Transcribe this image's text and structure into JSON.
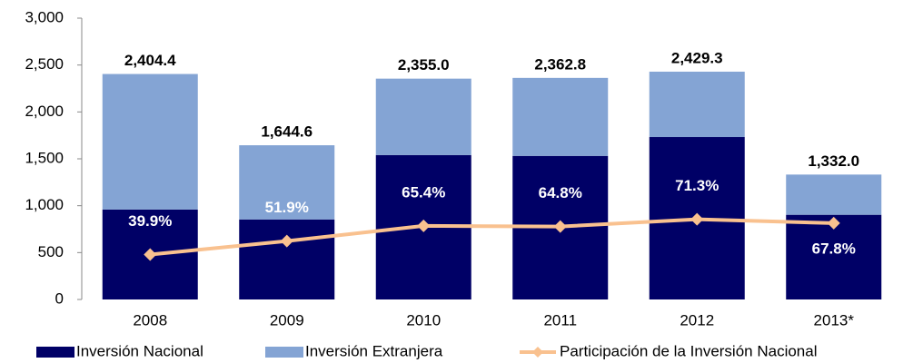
{
  "chart_data": {
    "type": "bar",
    "categories": [
      "2008",
      "2009",
      "2010",
      "2011",
      "2012",
      "2013*"
    ],
    "series": [
      {
        "name": "Inversión Nacional",
        "color": "#000066",
        "values": [
          959.4,
          853.5,
          1540.2,
          1531.1,
          1732.1,
          903.1
        ]
      },
      {
        "name": "Inversión Extranjera",
        "color": "#84a4d4",
        "values": [
          1445.0,
          791.1,
          814.8,
          831.7,
          697.2,
          428.9
        ]
      },
      {
        "name": "Participación de la Inversión Nacional",
        "type": "line",
        "axis": "y2",
        "color": "#f9c18f",
        "values": [
          39.9,
          51.9,
          65.4,
          64.8,
          71.3,
          67.8
        ],
        "value_labels": [
          "39.9%",
          "51.9%",
          "65.4%",
          "64.8%",
          "71.3%",
          "67.8%"
        ]
      }
    ],
    "totals": [
      2404.4,
      1644.6,
      2355.0,
      2362.8,
      2429.3,
      1332.0
    ],
    "total_labels": [
      "2,404.4",
      "1,644.6",
      "2,355.0",
      "2,362.8",
      "2,429.3",
      "1,332.0"
    ],
    "ylim": [
      0,
      3000
    ],
    "yticks": [
      0,
      500,
      {
        "value": 1000,
        "label": "1,000"
      },
      {
        "value": 1500,
        "label": "1,500"
      },
      {
        "value": 2000,
        "label": "2,000"
      },
      {
        "value": 2500,
        "label": "2,500"
      },
      {
        "value": 3000,
        "label": "3,000"
      }
    ],
    "y2lim": [
      0,
      250
    ],
    "stacked": true
  }
}
